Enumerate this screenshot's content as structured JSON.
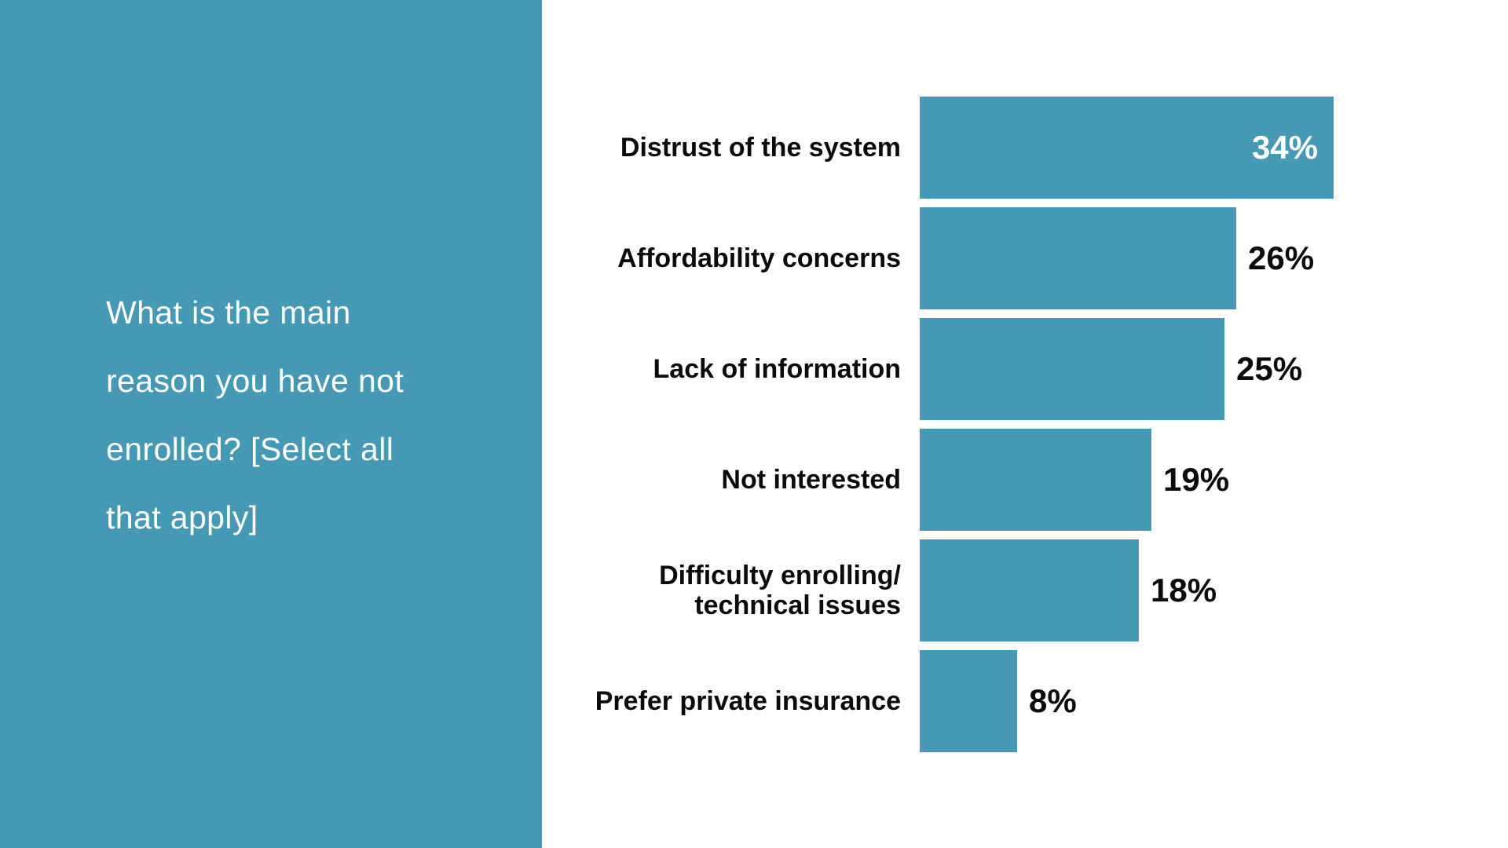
{
  "panel": {
    "question": "What is the main reason you have not enrolled? [Select all that apply]",
    "question_lines": [
      "What is the main",
      "reason you have not",
      "enrolled? [Select all",
      "that apply]"
    ]
  },
  "colors": {
    "accent_teal": "#4599b4",
    "text_on_teal": "#ffffff",
    "label_black": "#0b0b0b",
    "background": "#ffffff"
  },
  "chart_data": {
    "type": "bar",
    "orientation": "horizontal",
    "title": "",
    "xlabel": "",
    "ylabel": "",
    "xlim": [
      0,
      34
    ],
    "grid": false,
    "axes_visible": false,
    "legend": "none",
    "bar_color": "#4599b4",
    "categories": [
      "Distrust of the system",
      "Affordability concerns",
      "Lack of information",
      "Not interested",
      "Difficulty enrolling/\ntechnical issues",
      "Prefer private insurance"
    ],
    "values": [
      34,
      26,
      25,
      19,
      18,
      8
    ],
    "value_labels": [
      "34%",
      "26%",
      "25%",
      "19%",
      "18%",
      "8%"
    ],
    "value_label_inside": [
      true,
      false,
      false,
      false,
      false,
      false
    ]
  }
}
